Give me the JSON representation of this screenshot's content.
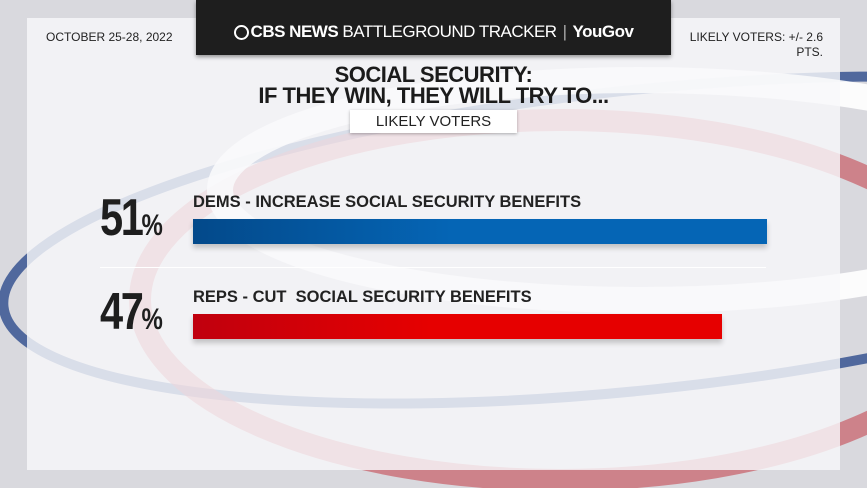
{
  "header": {
    "brand": "CBS NEWS",
    "product": "BATTLEGROUND TRACKER",
    "partner": "YouGov"
  },
  "date": "OCTOBER 25-28, 2022",
  "margin_of_error": "LIKELY VOTERS: +/- 2.6 PTS.",
  "title_line1": "SOCIAL SECURITY:",
  "title_line2": "IF THEY WIN, THEY WILL TRY TO...",
  "subtitle": "LIKELY VOTERS",
  "chart_data": {
    "type": "bar",
    "orientation": "horizontal",
    "title": "SOCIAL SECURITY: IF THEY WIN, THEY WILL TRY TO...",
    "subtitle": "LIKELY VOTERS",
    "categories": [
      "DEMS - INCREASE SOCIAL SECURITY BENEFITS",
      "REPS - CUT  SOCIAL SECURITY BENEFITS"
    ],
    "values": [
      51,
      47
    ],
    "value_labels": [
      "51",
      "47"
    ],
    "unit": "%",
    "colors": [
      "#0565b5",
      "#e60000"
    ],
    "xlim": [
      0,
      100
    ],
    "grid": false
  }
}
